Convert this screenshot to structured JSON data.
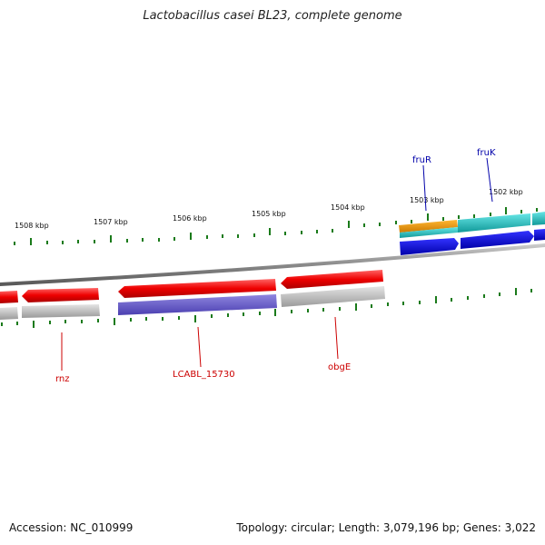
{
  "title": "Lactobacillus casei BL23, complete genome",
  "footer": {
    "accession": "Accession: NC_010999",
    "summary": "Topology: circular; Length: 3,079,196 bp; Genes: 3,022"
  },
  "scale": {
    "unit": "kbp",
    "ticks": [
      {
        "label": "1508 kbp"
      },
      {
        "label": "1507 kbp"
      },
      {
        "label": "1506 kbp"
      },
      {
        "label": "1505 kbp"
      },
      {
        "label": "1504 kbp"
      },
      {
        "label": "1503 kbp"
      },
      {
        "label": "1502 kbp"
      }
    ]
  },
  "gene_labels": {
    "forward": [
      {
        "text": "fruR",
        "color": "#0000aa"
      },
      {
        "text": "fruK",
        "color": "#0000aa"
      }
    ],
    "reverse": [
      {
        "text": "rnz",
        "color": "#cc0000"
      },
      {
        "text": "LCABL_15730",
        "color": "#cc0000"
      },
      {
        "text": "obgE",
        "color": "#cc0000"
      }
    ]
  },
  "colors": {
    "backbone": "#888888",
    "forward_cds": "#0000dd",
    "forward_gene": "#22cccc",
    "forward_rna": "#ee9900",
    "reverse_cds": "#dd0000",
    "reverse_gene": "#bbbbbb",
    "reverse_other": "#6a5acd",
    "ticks": "#1a7a1a"
  }
}
